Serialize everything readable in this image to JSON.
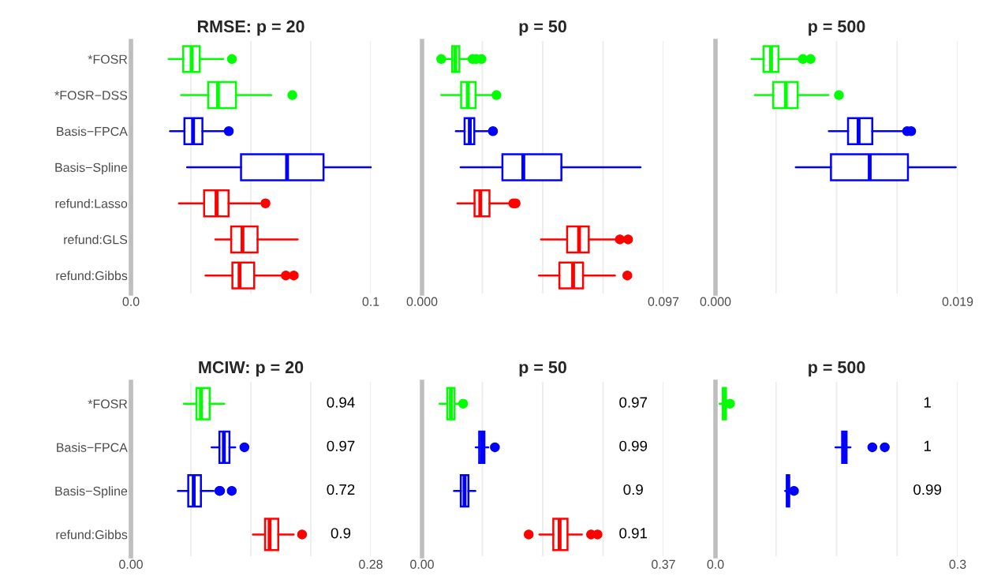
{
  "chart_data": [
    {
      "type": "box",
      "title": "RMSE: p = 20",
      "orientation": "horizontal",
      "grid": "x",
      "categories": [
        "*FOSR",
        "*FOSR−DSS",
        "Basis−FPCA",
        "Basis−Spline",
        "refund:Lasso",
        "refund:GLS",
        "refund:Gibbs"
      ],
      "colors": [
        "#00ff00",
        "#00ff00",
        "#0000ff",
        "#0000ff",
        "#ff0000",
        "#ff0000",
        "#ff0000"
      ],
      "boxes": [
        {
          "low": 0.0157,
          "q1": 0.0218,
          "median": 0.0253,
          "q3": 0.0287,
          "high": 0.0385,
          "outliers": [
            0.0421
          ]
        },
        {
          "low": 0.0209,
          "q1": 0.0322,
          "median": 0.0363,
          "q3": 0.0438,
          "high": 0.0585,
          "outliers": [
            0.0673
          ]
        },
        {
          "low": 0.0163,
          "q1": 0.0223,
          "median": 0.0259,
          "q3": 0.0298,
          "high": 0.039,
          "outliers": [
            0.0408
          ]
        },
        {
          "low": 0.0234,
          "q1": 0.0459,
          "median": 0.0651,
          "q3": 0.0803,
          "high": 0.1
        },
        {
          "low": 0.02,
          "q1": 0.0305,
          "median": 0.0357,
          "q3": 0.0407,
          "high": 0.0539,
          "outliers": [
            0.0561
          ]
        },
        {
          "low": 0.0352,
          "q1": 0.0418,
          "median": 0.0465,
          "q3": 0.0528,
          "high": 0.0695
        },
        {
          "low": 0.0311,
          "q1": 0.0423,
          "median": 0.0453,
          "q3": 0.0514,
          "high": 0.0632,
          "outliers": [
            0.0646,
            0.0679
          ]
        }
      ],
      "xlim": [
        0,
        0.1
      ],
      "xticks": [
        {
          "value": 0,
          "label": "0.0"
        },
        {
          "value": 0.025,
          "label": null
        },
        {
          "value": 0.05,
          "label": null
        },
        {
          "value": 0.075,
          "label": null
        },
        0.1
      ]
    },
    {
      "type": "box",
      "title": "p = 50",
      "orientation": "horizontal",
      "grid": "x",
      "tick_labels": "x",
      "categories": [
        null,
        null,
        null,
        null,
        null,
        null,
        null
      ],
      "colors": [
        "#00ff00",
        "#00ff00",
        "#0000ff",
        "#0000ff",
        "#ff0000",
        "#ff0000",
        "#ff0000"
      ],
      "boxes": [
        {
          "low": 0.0092,
          "q1": 0.0121,
          "median": 0.0134,
          "q3": 0.015,
          "high": 0.0197,
          "outliers": [
            0.0077,
            0.0203,
            0.0218,
            0.0239
          ]
        },
        {
          "low": 0.0077,
          "q1": 0.0157,
          "median": 0.0184,
          "q3": 0.0215,
          "high": 0.0281,
          "outliers": [
            0.0299
          ]
        },
        {
          "low": 0.0136,
          "q1": 0.0171,
          "median": 0.0192,
          "q3": 0.021,
          "high": 0.0266,
          "outliers": [
            0.0285
          ]
        },
        {
          "low": 0.0155,
          "q1": 0.0323,
          "median": 0.0407,
          "q3": 0.056,
          "high": 0.0878
        },
        {
          "low": 0.0142,
          "q1": 0.0211,
          "median": 0.0234,
          "q3": 0.0271,
          "high": 0.035,
          "outliers": [
            0.0367,
            0.0376
          ]
        },
        {
          "low": 0.0478,
          "q1": 0.0583,
          "median": 0.0631,
          "q3": 0.067,
          "high": 0.0775,
          "outliers": [
            0.0795,
            0.0828
          ]
        },
        {
          "low": 0.047,
          "q1": 0.0552,
          "median": 0.0607,
          "q3": 0.0647,
          "high": 0.0775,
          "outliers": [
            0.0825
          ]
        }
      ],
      "xlim": [
        0,
        0.097
      ],
      "xticks": [
        {
          "value": 0,
          "label": "0.000"
        },
        {
          "value": 0.02425,
          "label": null
        },
        {
          "value": 0.0485,
          "label": null
        },
        {
          "value": 0.07275,
          "label": null
        },
        0.097
      ]
    },
    {
      "type": "box",
      "title": "p = 500",
      "orientation": "horizontal",
      "grid": "x",
      "tick_labels": "x",
      "categories": [
        null,
        null,
        null,
        null,
        null,
        null,
        null
      ],
      "colors": [
        "#00ff00",
        "#00ff00",
        "#0000ff",
        "#0000ff",
        "#ff0000",
        "#ff0000",
        "#ff0000"
      ],
      "boxes": [
        {
          "low": 0.00282,
          "q1": 0.00377,
          "median": 0.00436,
          "q3": 0.00494,
          "high": 0.00659,
          "outliers": [
            0.00686,
            0.00746
          ]
        },
        {
          "low": 0.00309,
          "q1": 0.00453,
          "median": 0.00552,
          "q3": 0.00645,
          "high": 0.00886,
          "outliers": [
            0.00968
          ]
        },
        {
          "low": 0.0089,
          "q1": 0.0104,
          "median": 0.01123,
          "q3": 0.0123,
          "high": 0.01463,
          "outliers": [
            0.01504,
            0.01535
          ]
        },
        {
          "low": 0.0063,
          "q1": 0.00906,
          "median": 0.0121,
          "q3": 0.0151,
          "high": 0.01885
        },
        null,
        null,
        null
      ],
      "xlim": [
        0,
        0.019
      ],
      "xticks": [
        {
          "value": 0,
          "label": "0.000"
        },
        {
          "value": 0.00475,
          "label": null
        },
        {
          "value": 0.0095,
          "label": null
        },
        {
          "value": 0.01425,
          "label": null
        },
        0.019
      ]
    },
    {
      "type": "box",
      "title": "MCIW: p = 20",
      "orientation": "horizontal",
      "grid": "x",
      "categories": [
        "*FOSR",
        "Basis−FPCA",
        "Basis−Spline",
        "refund:Gibbs"
      ],
      "colors": [
        "#00ff00",
        "#0000ff",
        "#0000ff",
        "#ff0000"
      ],
      "boxes": [
        {
          "low": 0.0617,
          "q1": 0.0765,
          "median": 0.0817,
          "q3": 0.0919,
          "high": 0.109
        },
        {
          "low": 0.0942,
          "q1": 0.1033,
          "median": 0.1085,
          "q3": 0.115,
          "high": 0.1217,
          "outliers": [
            0.1325
          ]
        },
        {
          "low": 0.0548,
          "q1": 0.0669,
          "median": 0.0733,
          "q3": 0.0817,
          "high": 0.0965,
          "outliers": [
            0.1033,
            0.104,
            0.1177
          ]
        },
        {
          "low": 0.1424,
          "q1": 0.1566,
          "median": 0.1619,
          "q3": 0.172,
          "high": 0.19,
          "outliers": [
            0.1998
          ]
        }
      ],
      "xlim": [
        0,
        0.28
      ],
      "xticks": [
        {
          "value": 0,
          "label": "0.00"
        },
        {
          "value": 0.07,
          "label": null
        },
        {
          "value": 0.14,
          "label": null
        },
        {
          "value": 0.21,
          "label": null
        },
        0.28
      ],
      "annotations": [
        "0.94",
        "0.97",
        "0.72",
        "0.9"
      ]
    },
    {
      "type": "box",
      "title": "p = 50",
      "orientation": "horizontal",
      "grid": "x",
      "tick_labels": "x",
      "categories": [
        null,
        null,
        null,
        null
      ],
      "colors": [
        "#00ff00",
        "#0000ff",
        "#0000ff",
        "#ff0000"
      ],
      "boxes": [
        {
          "low": 0.0269,
          "q1": 0.0386,
          "median": 0.0442,
          "q3": 0.0498,
          "high": 0.0562,
          "outliers": [
            0.063
          ]
        },
        {
          "low": 0.0823,
          "q1": 0.0876,
          "median": 0.0916,
          "q3": 0.0956,
          "high": 0.1016,
          "outliers": [
            0.1117
          ]
        },
        {
          "low": 0.049,
          "q1": 0.0594,
          "median": 0.0651,
          "q3": 0.0711,
          "high": 0.0816
        },
        {
          "low": 0.18,
          "q1": 0.2012,
          "median": 0.2109,
          "q3": 0.223,
          "high": 0.245,
          "outliers": [
            0.1635,
            0.2591,
            0.269
          ]
        }
      ],
      "xlim": [
        0,
        0.37
      ],
      "xticks": [
        {
          "value": 0,
          "label": "0.00"
        },
        {
          "value": 0.0925,
          "label": null
        },
        {
          "value": 0.185,
          "label": null
        },
        {
          "value": 0.2775,
          "label": null
        },
        0.37
      ],
      "annotations": [
        "0.97",
        "0.99",
        "0.9",
        "0.91"
      ]
    },
    {
      "type": "box",
      "title": "p = 500",
      "orientation": "horizontal",
      "grid": "x",
      "tick_labels": "x",
      "categories": [
        null,
        null,
        null,
        null
      ],
      "colors": [
        "#00ff00",
        "#0000ff",
        "#0000ff",
        "#ff0000"
      ],
      "boxes": [
        {
          "low": 0.005,
          "q1": 0.009,
          "median": 0.011,
          "q3": 0.013,
          "high": 0.016,
          "outliers": [
            0.018
          ]
        },
        {
          "low": 0.1487,
          "q1": 0.1569,
          "median": 0.1598,
          "q3": 0.1624,
          "high": 0.1672,
          "outliers": [
            0.1943,
            0.2097
          ]
        },
        {
          "low": 0.0864,
          "q1": 0.0884,
          "median": 0.0897,
          "q3": 0.0913,
          "high": 0.0929,
          "outliers": [
            0.0972
          ]
        },
        null
      ],
      "xlim": [
        0,
        0.3
      ],
      "xticks": [
        {
          "value": 0,
          "label": "0.0"
        },
        {
          "value": 0.075,
          "label": null
        },
        {
          "value": 0.15,
          "label": null
        },
        {
          "value": 0.225,
          "label": null
        },
        0.3
      ],
      "annotations": [
        "1",
        "1",
        "0.99"
      ]
    }
  ]
}
